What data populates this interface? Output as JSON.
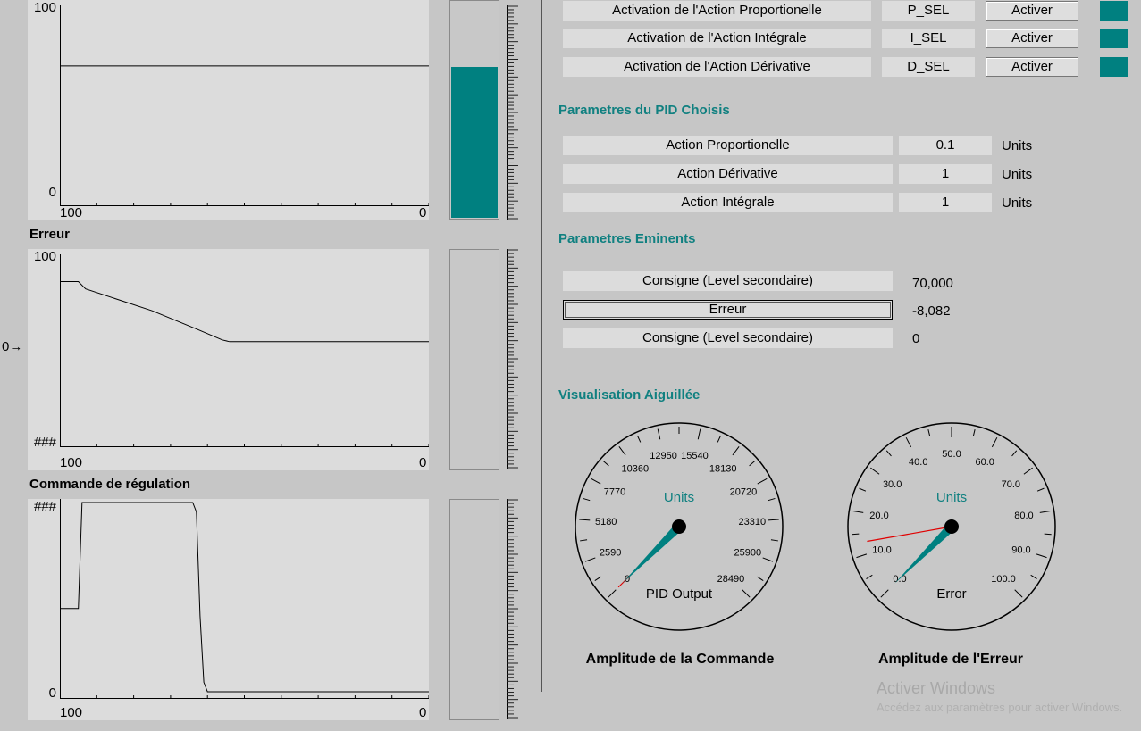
{
  "charts": [
    {
      "title": "",
      "y_max_label": "100",
      "y_min_label": "0",
      "x_left_label": "100",
      "x_right_label": "0",
      "bar_fraction": 0.7,
      "series_points": [
        [
          100,
          70
        ],
        [
          0,
          70
        ]
      ]
    },
    {
      "title": "Erreur",
      "y_max_label": "100",
      "y_min_label": "###",
      "x_left_label": "100",
      "x_right_label": "0",
      "side_marker": "0",
      "bar_fraction": 0.0,
      "series_points": [
        [
          100,
          87
        ],
        [
          95,
          87
        ],
        [
          93,
          83
        ],
        [
          75,
          71
        ],
        [
          63,
          61
        ],
        [
          56,
          55
        ],
        [
          54,
          54
        ],
        [
          0,
          54
        ]
      ]
    },
    {
      "title": "Commande de régulation",
      "y_max_label": "###",
      "y_min_label": "0",
      "x_left_label": "100",
      "x_right_label": "0",
      "bar_fraction": 0.0,
      "series_points": [
        [
          100,
          44
        ],
        [
          95,
          44
        ],
        [
          94,
          100
        ],
        [
          64,
          100
        ],
        [
          63,
          95
        ],
        [
          62,
          40
        ],
        [
          61,
          5
        ],
        [
          60,
          0
        ],
        [
          0,
          0
        ]
      ]
    }
  ],
  "activation": [
    {
      "label": "Activation de l'Action Proportionelle",
      "tag": "P_SEL",
      "button": "Activer"
    },
    {
      "label": "Activation de l'Action Intégrale",
      "tag": "I_SEL",
      "button": "Activer"
    },
    {
      "label": "Activation de l'Action Dérivative",
      "tag": "D_SEL",
      "button": "Activer"
    }
  ],
  "indicator_color": "#008080",
  "pid_params": {
    "heading": "Parametres du PID Choisis",
    "rows": [
      {
        "label": "Action Proportionelle",
        "value": "0.1",
        "unit": "Units"
      },
      {
        "label": "Action Dérivative",
        "value": "1",
        "unit": "Units"
      },
      {
        "label": "Action Intégrale",
        "value": "1",
        "unit": "Units"
      }
    ]
  },
  "eminents": {
    "heading": "Parametres Eminents",
    "rows": [
      {
        "label": "Consigne (Level secondaire)",
        "value": "70,000"
      },
      {
        "label": "Erreur",
        "value": "-8,082"
      },
      {
        "label": "Consigne (Level secondaire)",
        "value": "0"
      }
    ]
  },
  "gauges_heading": "Visualisation Aiguillée",
  "gauges": [
    {
      "unit": "Units",
      "label": "PID Output",
      "caption": "Amplitude de la Commande",
      "scale": [
        "0",
        "2590",
        "5180",
        "7770",
        "10360",
        "12950",
        "15540",
        "18130",
        "20720",
        "23310",
        "25900",
        "28490"
      ],
      "needle_fraction": 0.0,
      "pointer_fraction": 0.0
    },
    {
      "unit": "Units",
      "label": "Error",
      "caption": "Amplitude de l'Erreur",
      "scale": [
        "0.0",
        "10.0",
        "20.0",
        "30.0",
        "40.0",
        "50.0",
        "60.0",
        "70.0",
        "80.0",
        "90.0",
        "100.0"
      ],
      "needle_fraction": 0.0,
      "pointer_fraction": 0.13
    }
  ],
  "watermark": {
    "line1": "Activer Windows",
    "line2": "Accédez aux paramètres pour activer Windows."
  }
}
